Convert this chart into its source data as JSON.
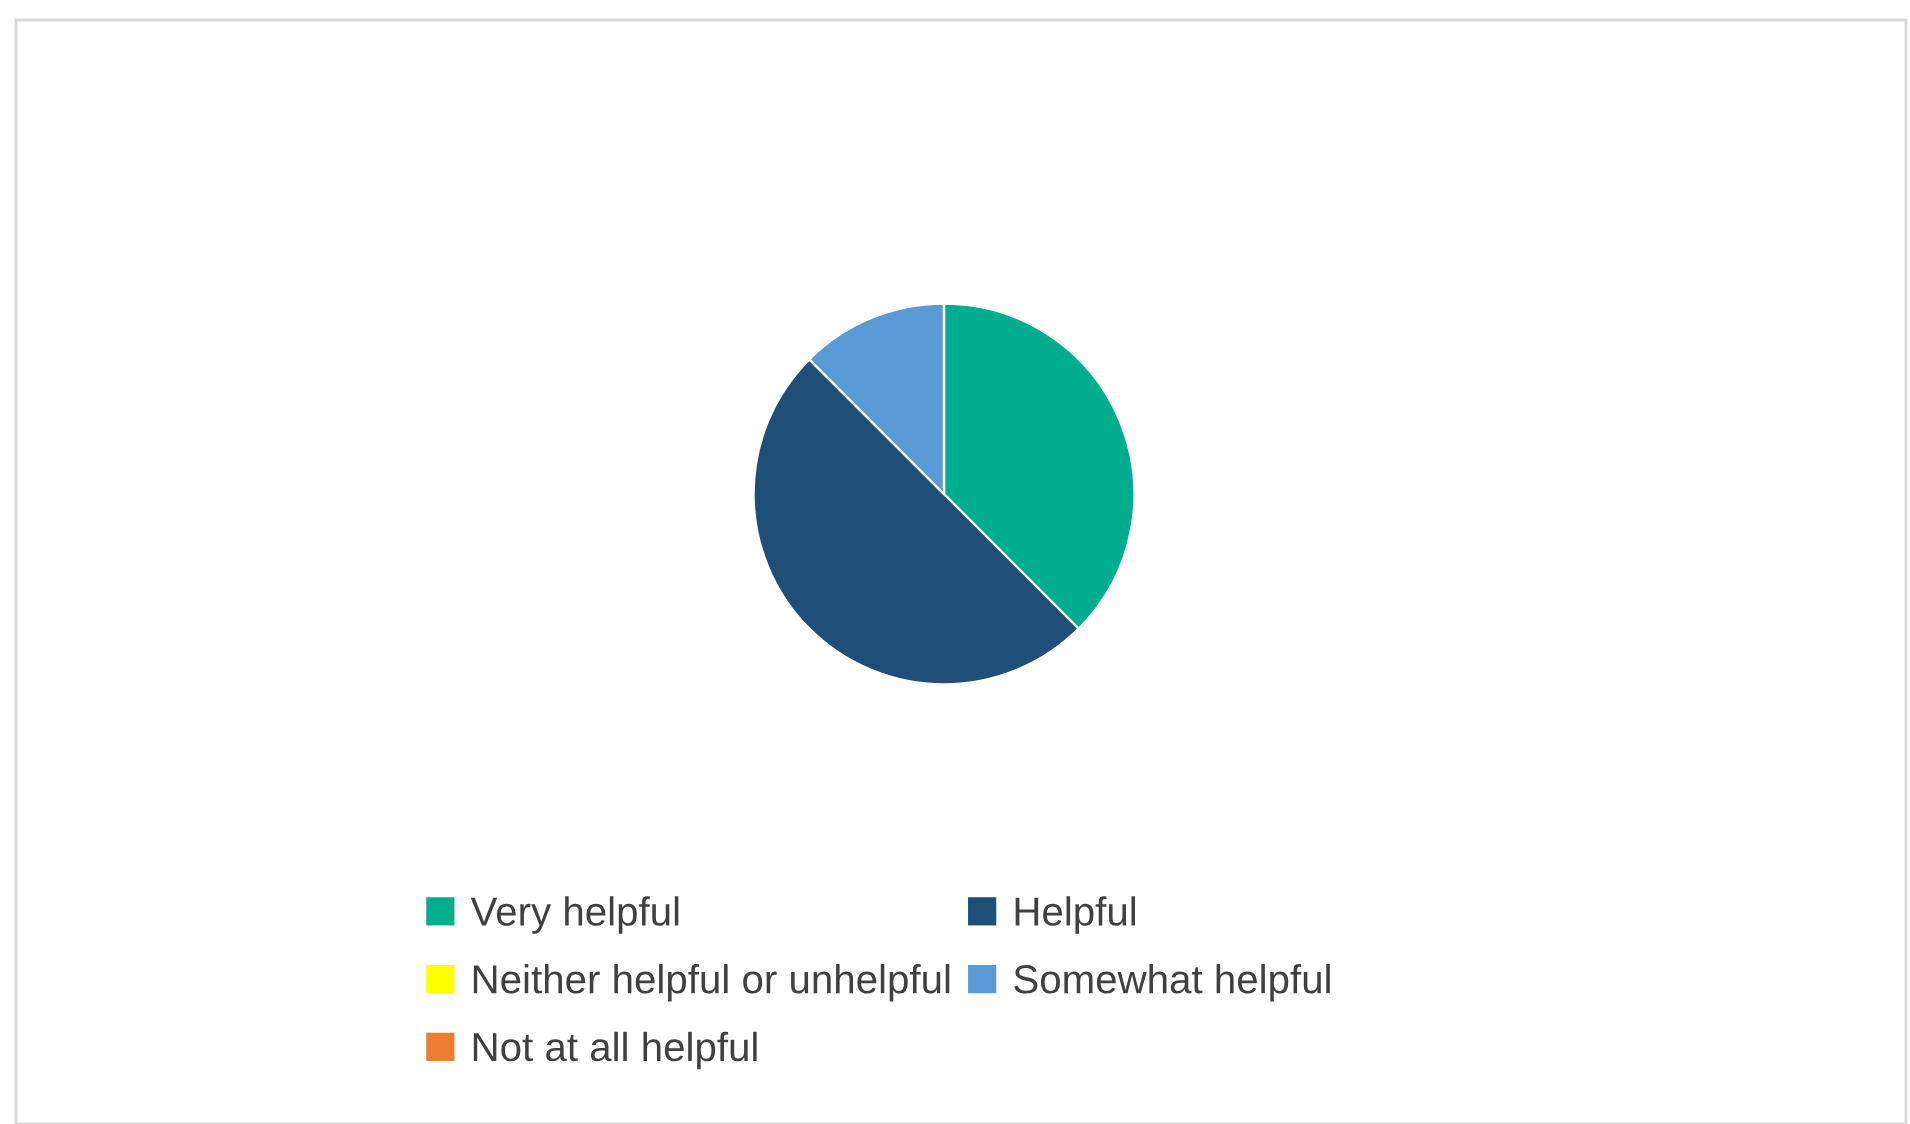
{
  "chart_data": {
    "type": "pie",
    "categories": [
      "Very helpful",
      "Helpful",
      "Neither helpful or unhelpful",
      "Somewhat helpful",
      "Not at all helpful"
    ],
    "values": [
      37.5,
      50,
      0,
      12.5,
      0
    ],
    "colors": [
      "#00ae8f",
      "#1f4e79",
      "#ffff00",
      "#5b9bd5",
      "#ed7d31"
    ],
    "legend": "bottom"
  }
}
